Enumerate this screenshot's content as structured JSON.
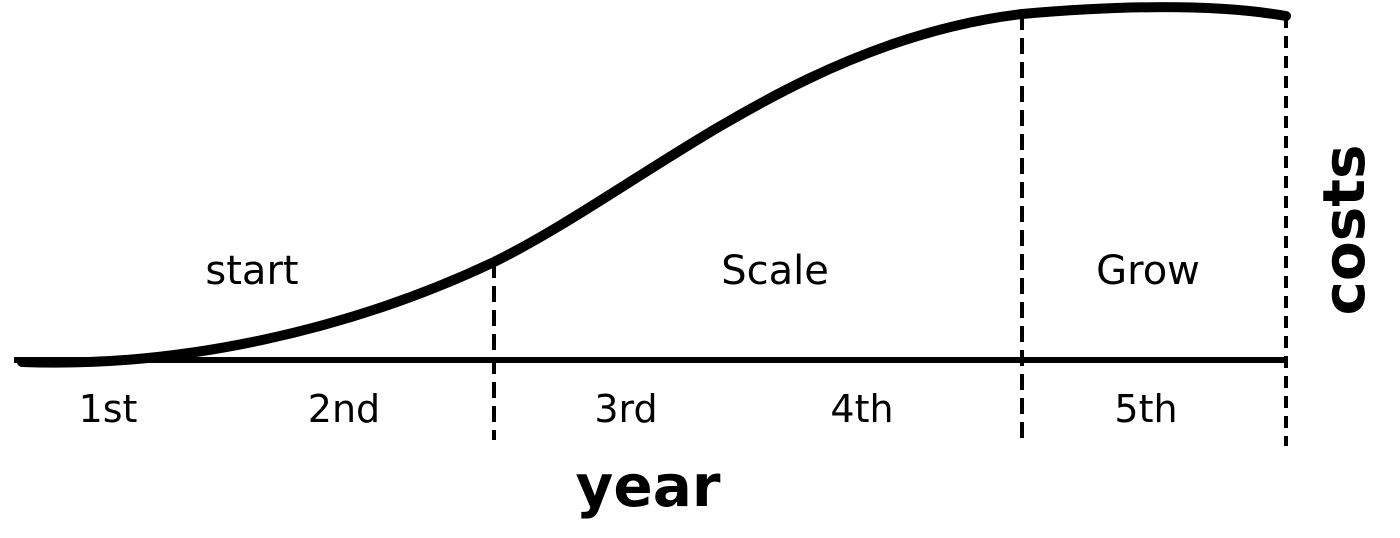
{
  "colors": {
    "background": "#ffffff",
    "ink": "#000000"
  },
  "phases": [
    {
      "label": "start"
    },
    {
      "label": "Scale"
    },
    {
      "label": "Grow"
    }
  ],
  "years": [
    {
      "label": "1st"
    },
    {
      "label": "2nd"
    },
    {
      "label": "3rd"
    },
    {
      "label": "4th"
    },
    {
      "label": "5th"
    }
  ],
  "axes": {
    "x_title": "year",
    "y_title": "costs"
  }
}
